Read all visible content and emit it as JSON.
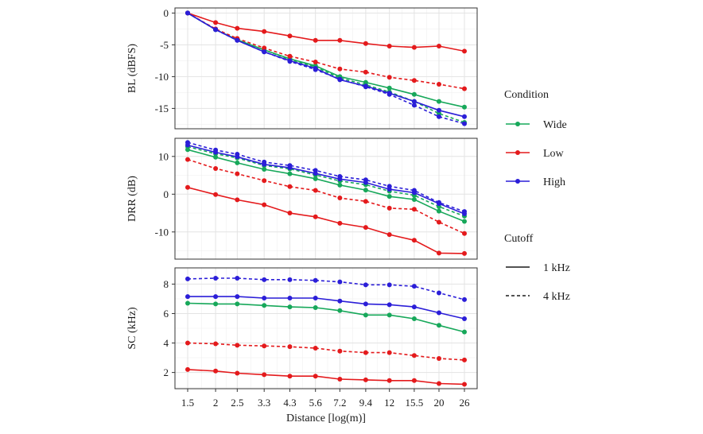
{
  "chart_data": {
    "type": "line",
    "layout": "three vertically stacked panels sharing x axis, legend on right",
    "x": {
      "label": "Distance [log(m)]",
      "scale": "log",
      "ticks": [
        "1.5",
        "2",
        "2.5",
        "3.3",
        "4.3",
        "5.6",
        "7.2",
        "9.4",
        "12",
        "15.5",
        "20",
        "26"
      ],
      "values": [
        1.5,
        2,
        2.5,
        3.3,
        4.3,
        5.6,
        7.2,
        9.4,
        12,
        15.5,
        20,
        26
      ]
    },
    "conditions": [
      {
        "name": "Wide",
        "color": "#17a85a"
      },
      {
        "name": "Low",
        "color": "#e41a1c"
      },
      {
        "name": "High",
        "color": "#2b1ed8"
      }
    ],
    "cutoffs": [
      {
        "name": "1 kHz",
        "dash": "solid"
      },
      {
        "name": "4 kHz",
        "dash": "dashed"
      }
    ],
    "panels": [
      {
        "ylabel": "BL (dBFS)",
        "ylim": [
          -18.2,
          0.8
        ],
        "yticks": [
          0,
          -5,
          -10,
          -15
        ],
        "grid": true,
        "series": [
          {
            "condition": "Wide",
            "cutoff": "1 kHz",
            "values": [
              0,
              -2.6,
              -4.2,
              -5.8,
              -7.2,
              -8.3,
              -10.0,
              -10.9,
              -11.8,
              -12.8,
              -13.9,
              -14.8
            ]
          },
          {
            "condition": "Wide",
            "cutoff": "4 kHz",
            "values": [
              0,
              -2.6,
              -4.2,
              -5.8,
              -7.3,
              -8.5,
              -10.2,
              -11.3,
              -12.4,
              -13.9,
              -15.8,
              -17.2
            ]
          },
          {
            "condition": "Low",
            "cutoff": "1 kHz",
            "values": [
              0,
              -1.5,
              -2.4,
              -2.9,
              -3.6,
              -4.3,
              -4.3,
              -4.8,
              -5.2,
              -5.4,
              -5.2,
              -6.0
            ]
          },
          {
            "condition": "Low",
            "cutoff": "4 kHz",
            "values": [
              0,
              -2.5,
              -4.0,
              -5.5,
              -6.8,
              -7.7,
              -8.8,
              -9.3,
              -10.1,
              -10.6,
              -11.2,
              -11.9
            ]
          },
          {
            "condition": "High",
            "cutoff": "1 kHz",
            "values": [
              0,
              -2.6,
              -4.3,
              -6.1,
              -7.5,
              -8.7,
              -10.5,
              -11.5,
              -12.6,
              -13.9,
              -15.3,
              -16.3
            ]
          },
          {
            "condition": "High",
            "cutoff": "4 kHz",
            "values": [
              0,
              -2.6,
              -4.3,
              -6.1,
              -7.6,
              -8.9,
              -10.4,
              -11.6,
              -12.8,
              -14.5,
              -16.3,
              -17.4
            ]
          }
        ]
      },
      {
        "ylabel": "DRR (dB)",
        "ylim": [
          -17.2,
          14.8
        ],
        "yticks": [
          10,
          0,
          -10
        ],
        "grid": true,
        "series": [
          {
            "condition": "Wide",
            "cutoff": "1 kHz",
            "values": [
              11.8,
              9.8,
              8.3,
              6.6,
              5.4,
              4.1,
              2.4,
              1.1,
              -0.6,
              -1.4,
              -4.5,
              -7.2
            ]
          },
          {
            "condition": "Wide",
            "cutoff": "4 kHz",
            "values": [
              12.6,
              10.7,
              9.6,
              7.6,
              6.7,
              5.1,
              3.5,
              2.5,
              0.8,
              -0.3,
              -3.3,
              -5.8
            ]
          },
          {
            "condition": "Low",
            "cutoff": "1 kHz",
            "values": [
              1.8,
              -0.1,
              -1.5,
              -2.8,
              -5.0,
              -6.0,
              -7.7,
              -8.8,
              -10.7,
              -12.2,
              -15.6,
              -15.7
            ]
          },
          {
            "condition": "Low",
            "cutoff": "4 kHz",
            "values": [
              9.2,
              6.8,
              5.4,
              3.6,
              2.0,
              1.0,
              -1.0,
              -1.9,
              -3.7,
              -4.0,
              -7.4,
              -10.4
            ]
          },
          {
            "condition": "High",
            "cutoff": "1 kHz",
            "values": [
              13.0,
              11.1,
              9.9,
              7.9,
              7.0,
              5.5,
              4.0,
              3.1,
              1.3,
              0.4,
              -2.5,
              -5.2
            ]
          },
          {
            "condition": "High",
            "cutoff": "4 kHz",
            "values": [
              13.7,
              11.7,
              10.6,
              8.5,
              7.6,
              6.3,
              4.7,
              3.8,
              2.1,
              1.0,
              -2.2,
              -4.6
            ]
          }
        ]
      },
      {
        "ylabel": "SC (kHz)",
        "ylim": [
          0.9,
          9.1
        ],
        "yticks": [
          8,
          6,
          4,
          2
        ],
        "grid": true,
        "series": [
          {
            "condition": "Wide",
            "cutoff": "1 kHz",
            "values": [
              6.7,
              6.65,
              6.65,
              6.55,
              6.45,
              6.4,
              6.2,
              5.9,
              5.9,
              5.65,
              5.2,
              4.75
            ]
          },
          {
            "condition": "Low",
            "cutoff": "1 kHz",
            "values": [
              2.2,
              2.1,
              1.95,
              1.85,
              1.75,
              1.75,
              1.55,
              1.5,
              1.45,
              1.45,
              1.25,
              1.2
            ]
          },
          {
            "condition": "Low",
            "cutoff": "4 kHz",
            "values": [
              4.0,
              3.95,
              3.85,
              3.8,
              3.75,
              3.65,
              3.45,
              3.35,
              3.35,
              3.15,
              2.95,
              2.85
            ]
          },
          {
            "condition": "High",
            "cutoff": "1 kHz",
            "values": [
              7.15,
              7.15,
              7.15,
              7.05,
              7.05,
              7.05,
              6.85,
              6.65,
              6.6,
              6.45,
              6.05,
              5.65
            ]
          },
          {
            "condition": "High",
            "cutoff": "4 kHz",
            "values": [
              8.35,
              8.4,
              8.4,
              8.3,
              8.3,
              8.25,
              8.15,
              7.95,
              7.95,
              7.85,
              7.4,
              6.95
            ]
          }
        ]
      }
    ],
    "legend": {
      "placement": "right",
      "condition_title": "Condition",
      "cutoff_title": "Cutoff"
    }
  }
}
